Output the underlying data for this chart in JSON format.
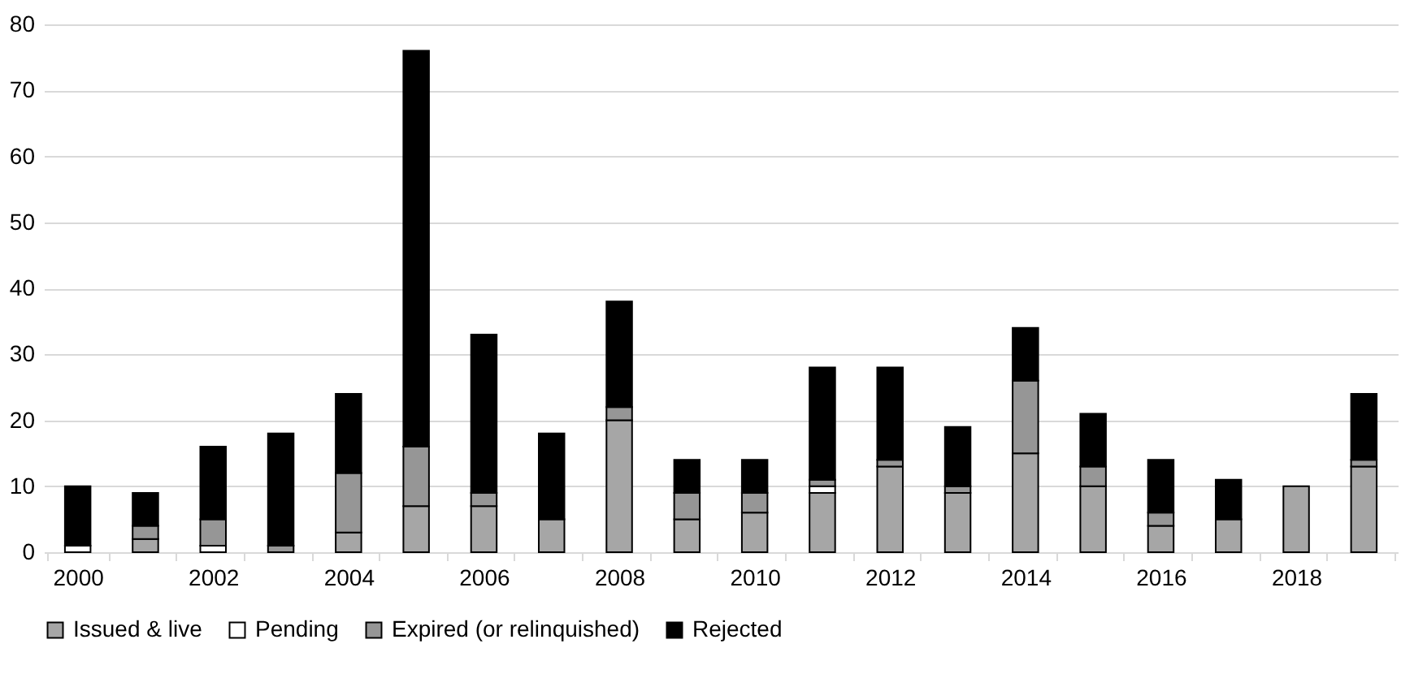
{
  "chart_data": {
    "type": "bar",
    "stacked": true,
    "categories": [
      "2000",
      null,
      "2002",
      null,
      "2004",
      null,
      "2006",
      null,
      "2008",
      null,
      "2010",
      null,
      "2012",
      null,
      "2014",
      null,
      "2016",
      null,
      "2018",
      null
    ],
    "series": [
      {
        "name": "Issued & live",
        "color": "#a6a6a6",
        "values": [
          0,
          2,
          0,
          0,
          3,
          7,
          7,
          5,
          20,
          5,
          6,
          9,
          13,
          9,
          15,
          10,
          4,
          5,
          10,
          13
        ]
      },
      {
        "name": "Pending",
        "color": "#ffffff",
        "values": [
          1,
          0,
          1,
          0,
          0,
          0,
          0,
          0,
          0,
          0,
          0,
          1,
          0,
          0,
          0,
          0,
          0,
          0,
          0,
          0
        ]
      },
      {
        "name": "Expired (or relinquished)",
        "color": "#969696",
        "values": [
          0,
          2,
          4,
          1,
          9,
          9,
          2,
          0,
          2,
          4,
          3,
          1,
          1,
          1,
          11,
          3,
          2,
          0,
          0,
          1
        ]
      },
      {
        "name": "Rejected",
        "color": "#000000",
        "values": [
          9,
          5,
          11,
          17,
          12,
          60,
          24,
          13,
          16,
          5,
          5,
          17,
          14,
          9,
          8,
          8,
          8,
          6,
          0,
          10
        ]
      }
    ],
    "ylim": [
      0,
      80
    ],
    "yticks": [
      0,
      10,
      20,
      30,
      40,
      50,
      60,
      70,
      80
    ],
    "grid": "y",
    "legend": "bottom"
  }
}
